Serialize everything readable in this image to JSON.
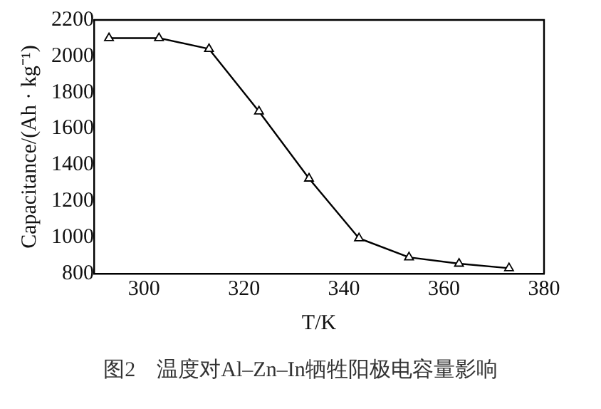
{
  "chart_data": {
    "type": "line",
    "title": "图2　温度对Al–Zn–In牺牲阳极电容量影响",
    "xlabel": "T/K",
    "ylabel": "Capacitance/(Ah · kg⁻¹)",
    "x": [
      293,
      303,
      313,
      323,
      333,
      343,
      353,
      363,
      373
    ],
    "series": [
      {
        "color": "#000000",
        "values": [
          2100,
          2100,
          2040,
          1695,
          1325,
          995,
          890,
          855,
          830
        ]
      }
    ],
    "xlim": [
      290,
      380
    ],
    "xticks": [
      300,
      320,
      340,
      360,
      380
    ],
    "ylim": [
      800,
      2200
    ],
    "yticks": [
      800,
      1000,
      1200,
      1400,
      1600,
      1800,
      2000,
      2200
    ],
    "marker": "triangle",
    "grid": false,
    "legend": false
  }
}
